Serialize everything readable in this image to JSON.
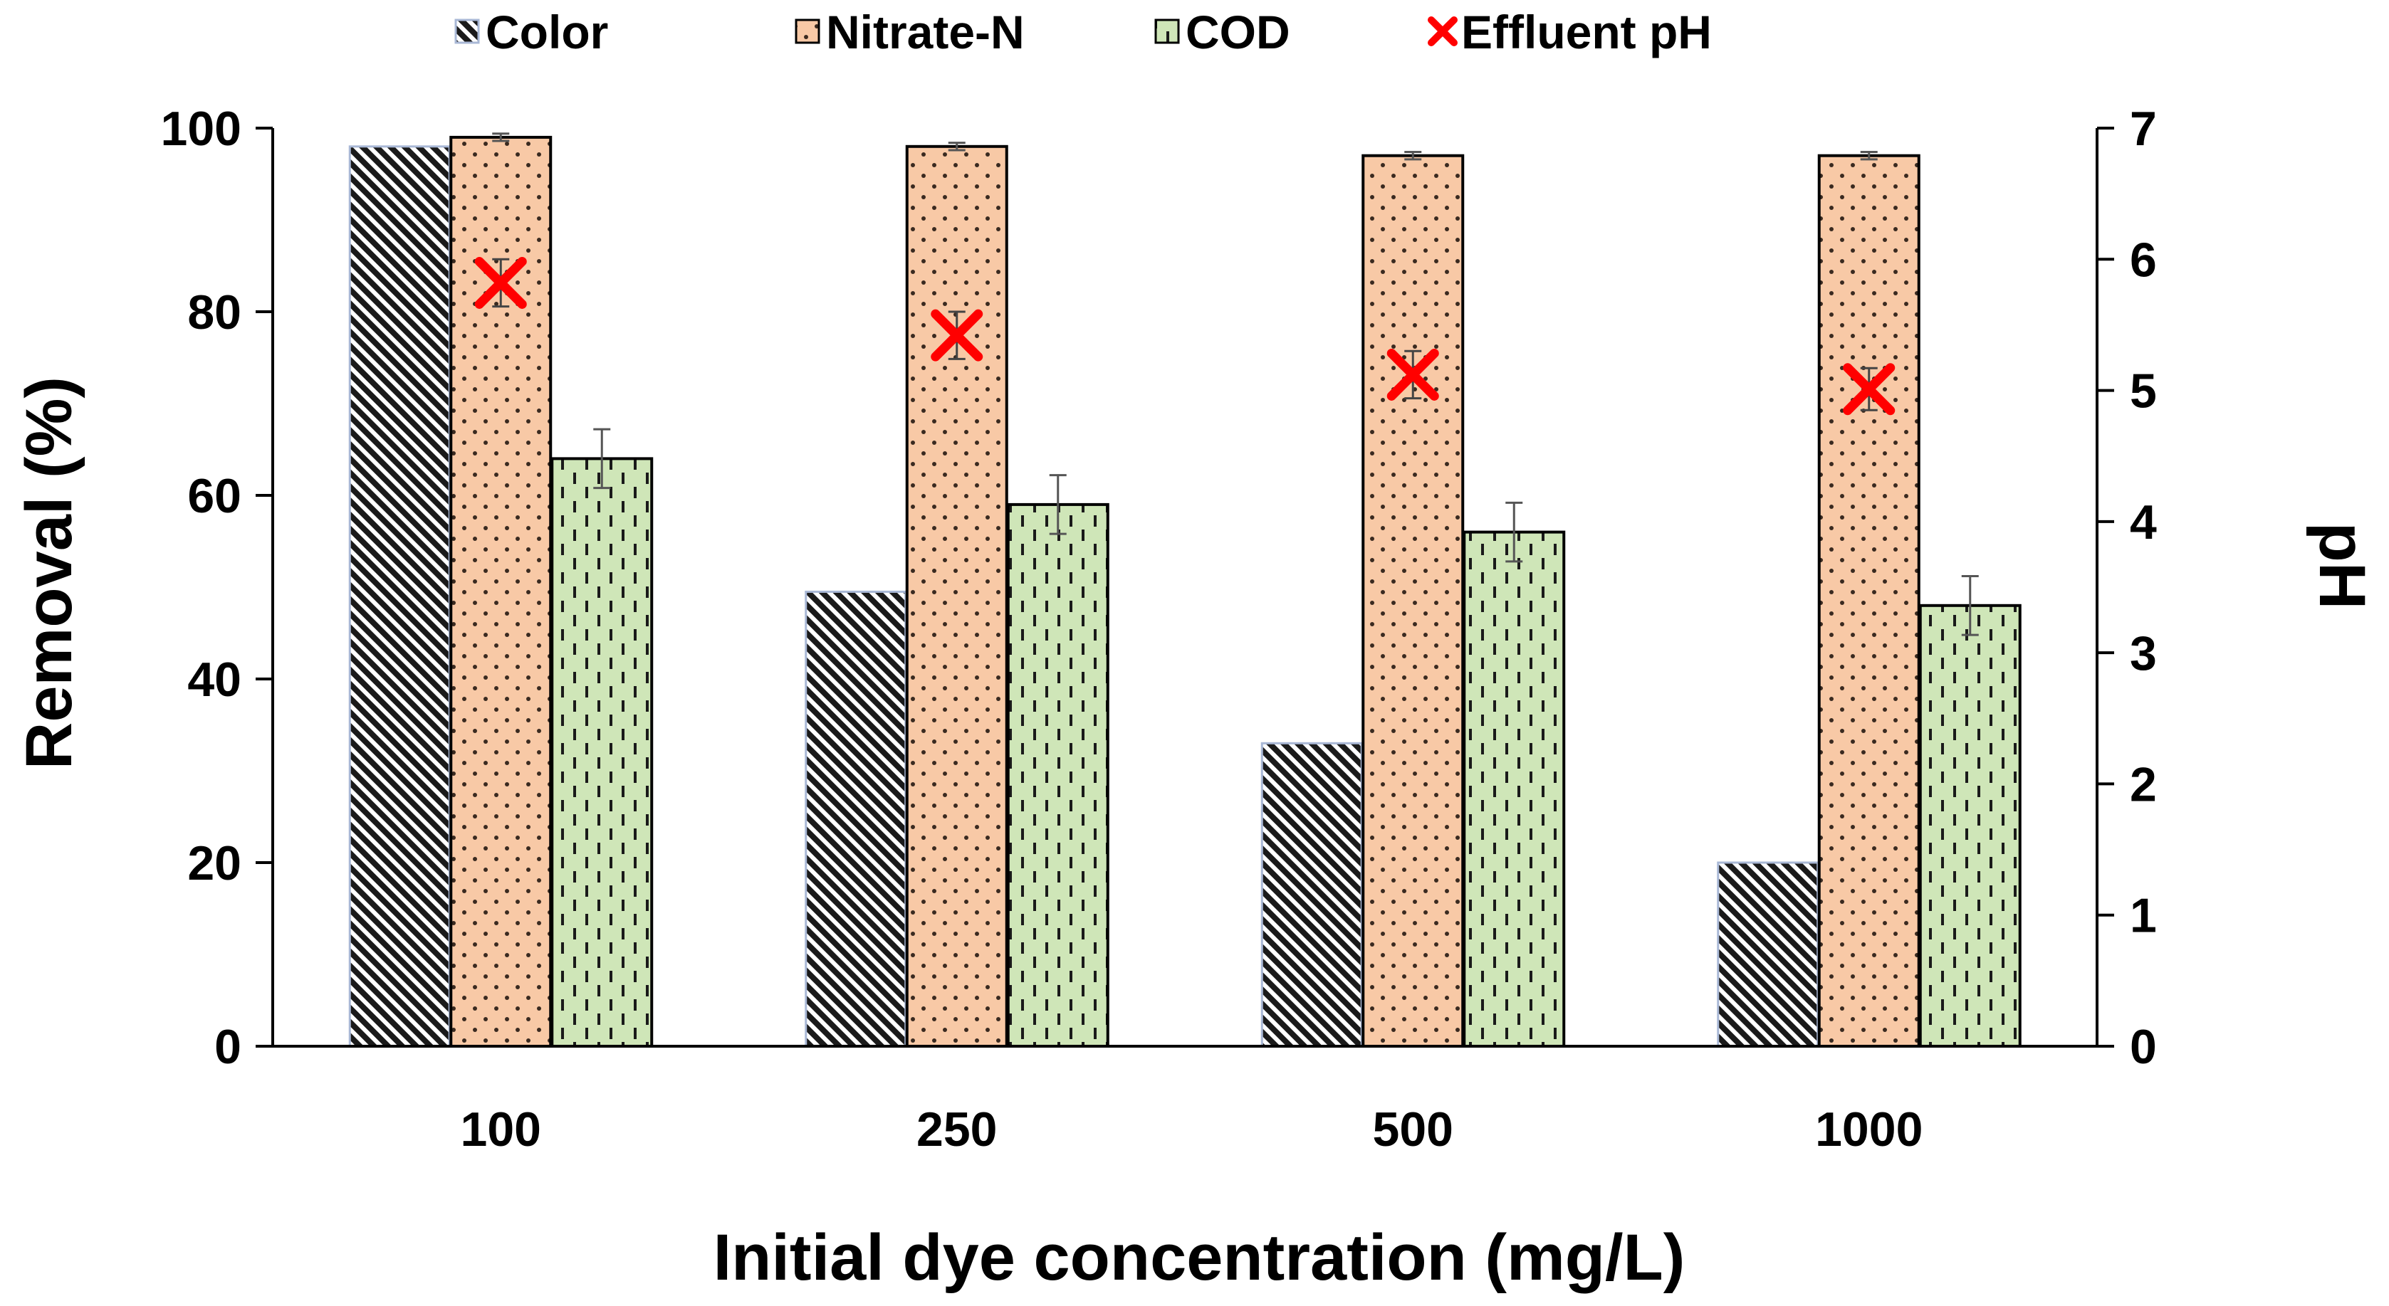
{
  "chart_data": {
    "type": "bar",
    "title": "",
    "xlabel": "Initial dye concentration (mg/L)",
    "ylabel": "Removal (%)",
    "y2label": "pH",
    "categories": [
      "100",
      "250",
      "500",
      "1000"
    ],
    "ylim": [
      0,
      100
    ],
    "yticks": [
      0,
      20,
      40,
      60,
      80,
      100
    ],
    "y2lim": [
      0,
      7
    ],
    "y2ticks": [
      0,
      1,
      2,
      3,
      4,
      5,
      6,
      7
    ],
    "grid": false,
    "legend_position": "top",
    "series": [
      {
        "name": "Color",
        "kind": "bar",
        "axis": "left",
        "values": [
          98,
          49.5,
          33,
          20
        ],
        "errors": [
          0,
          0,
          0,
          0
        ],
        "fill": "#ffffff",
        "pattern_color": "#1a1a1a",
        "edge": "#a9b8d6",
        "pattern": "diagonal"
      },
      {
        "name": "Nitrate-N",
        "kind": "bar",
        "axis": "left",
        "values": [
          99,
          98,
          97,
          97
        ],
        "errors": [
          0.4,
          0.4,
          0.4,
          0.4
        ],
        "fill": "#f8c9a6",
        "pattern_color": "#3a2a20",
        "edge": "#000000",
        "pattern": "dots"
      },
      {
        "name": "COD",
        "kind": "bar",
        "axis": "left",
        "values": [
          64,
          59,
          56,
          48
        ],
        "errors": [
          3.2,
          3.2,
          3.2,
          3.2
        ],
        "fill": "#cfe6b8",
        "pattern_color": "#1a1a1a",
        "edge": "#000000",
        "pattern": "dashes"
      },
      {
        "name": "Effluent pH",
        "kind": "marker",
        "axis": "right",
        "values": [
          5.82,
          5.42,
          5.12,
          5.01
        ],
        "errors": [
          0.18,
          0.18,
          0.18,
          0.16
        ],
        "color": "#ff0000"
      }
    ]
  }
}
